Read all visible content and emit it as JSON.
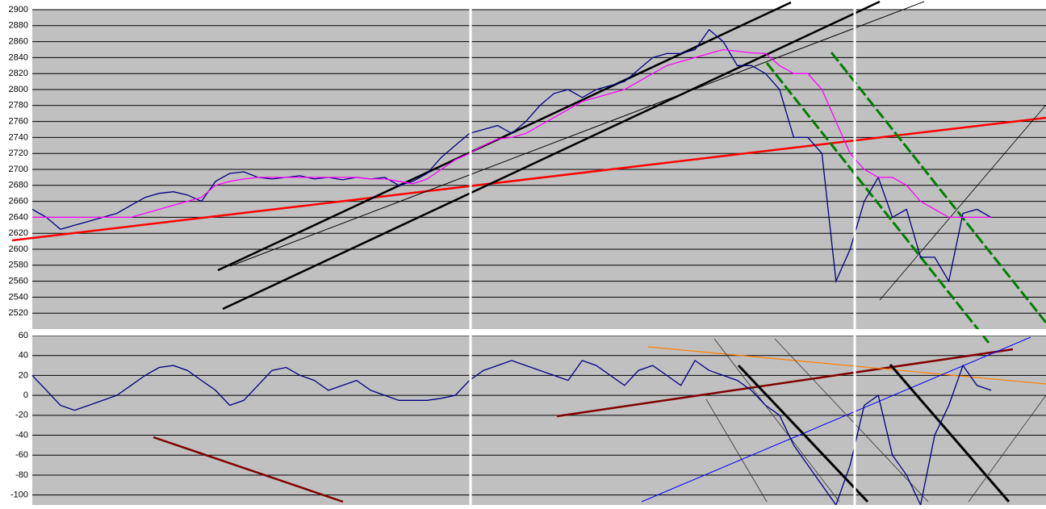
{
  "chart_data": [
    {
      "type": "line",
      "ylim": [
        2500,
        2900
      ],
      "yticks": [
        2520,
        2540,
        2560,
        2580,
        2600,
        2620,
        2640,
        2660,
        2680,
        2700,
        2720,
        2740,
        2760,
        2780,
        2800,
        2820,
        2840,
        2860,
        2880,
        2900
      ],
      "grid": true,
      "series": [
        {
          "color": "#000080",
          "values": [
            2650,
            2640,
            2625,
            2630,
            2635,
            2640,
            2645,
            2655,
            2665,
            2670,
            2672,
            2668,
            2660,
            2685,
            2695,
            2697,
            2690,
            2688,
            2690,
            2692,
            2688,
            2690,
            2687,
            2690,
            2688,
            2690,
            2680,
            2685,
            2695,
            2715,
            2730,
            2745,
            2750,
            2755,
            2745,
            2760,
            2780,
            2795,
            2800,
            2790,
            2800,
            2805,
            2810,
            2825,
            2840,
            2845,
            2845,
            2850,
            2875,
            2860,
            2830,
            2830,
            2820,
            2800,
            2740,
            2740,
            2720,
            2560,
            2600,
            2660,
            2690,
            2640,
            2650,
            2590,
            2590,
            2560,
            2645,
            2650,
            2640
          ]
        },
        {
          "color": "#ff00ff",
          "values": [
            2640,
            2640,
            2640,
            2640,
            2640,
            2640,
            2640,
            2640,
            2645,
            2650,
            2655,
            2660,
            2665,
            2680,
            2685,
            2688,
            2690,
            2690,
            2690,
            2690,
            2690,
            2690,
            2690,
            2690,
            2688,
            2688,
            2685,
            2682,
            2688,
            2700,
            2712,
            2720,
            2730,
            2738,
            2740,
            2745,
            2755,
            2765,
            2775,
            2785,
            2790,
            2795,
            2800,
            2810,
            2820,
            2830,
            2835,
            2840,
            2845,
            2850,
            2848,
            2846,
            2845,
            2830,
            2820,
            2820,
            2800,
            2760,
            2720,
            2700,
            2690,
            2690,
            2680,
            2660,
            2650,
            2640,
            2640,
            2640,
            2640
          ]
        }
      ]
    },
    {
      "type": "line",
      "ylim": [
        -110,
        60
      ],
      "yticks": [
        -100,
        -80,
        -60,
        -40,
        -20,
        0,
        20,
        40,
        60
      ],
      "grid": true,
      "series": [
        {
          "color": "#000080",
          "values": [
            20,
            5,
            -10,
            -15,
            -10,
            -5,
            0,
            10,
            20,
            28,
            30,
            25,
            15,
            5,
            -10,
            -5,
            10,
            25,
            28,
            20,
            15,
            5,
            10,
            15,
            5,
            0,
            -5,
            -5,
            -5,
            -3,
            0,
            15,
            25,
            30,
            35,
            30,
            25,
            20,
            15,
            35,
            30,
            20,
            10,
            25,
            30,
            20,
            10,
            35,
            25,
            20,
            15,
            5,
            -10,
            -20,
            -50,
            -70,
            -90,
            -110,
            -70,
            -10,
            0,
            -60,
            -80,
            -110,
            -40,
            -10,
            30,
            10,
            5
          ]
        }
      ]
    }
  ]
}
